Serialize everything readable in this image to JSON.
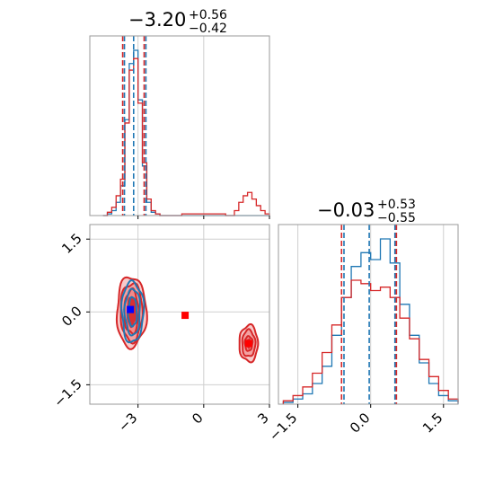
{
  "chart_data": {
    "type": "corner",
    "colors": {
      "blue": "#1f77b4",
      "red": "#d62728",
      "red_fill": "#f08a8a",
      "marker_blue": "#0000ff",
      "marker_red": "#ff0000"
    },
    "grid": true,
    "panels": [
      {
        "id": "marginal-param1",
        "type": "histogram",
        "title": {
          "median": "−3.20",
          "plus": "+0.56",
          "minus": "−0.42"
        },
        "xlim": [
          -5.2,
          3.0
        ],
        "vlines": {
          "blue": [
            -3.62,
            -3.2,
            -2.64
          ],
          "red": [
            -3.7,
            -2.72
          ]
        },
        "series": [
          {
            "name": "",
            "color": "#1f77b4",
            "bins": [
              -4.6,
              -4.4,
              -4.2,
              -4.0,
              -3.8,
              -3.6,
              -3.4,
              -3.2,
              -3.0,
              -2.8,
              -2.6,
              -2.4,
              -2.2,
              -2.0
            ],
            "counts": [
              0,
              1,
              3,
              8,
              18,
              58,
              92,
              100,
              70,
              30,
              8,
              2,
              1,
              0
            ]
          },
          {
            "name": "",
            "color": "#d62728",
            "bins": [
              -4.6,
              -4.4,
              -4.2,
              -4.0,
              -3.8,
              -3.6,
              -3.4,
              -3.2,
              -3.0,
              -2.8,
              -2.6,
              -2.4,
              -2.2,
              -2.0,
              -1.0,
              0.0,
              1.0,
              1.4,
              1.6,
              1.8,
              2.0,
              2.2,
              2.4,
              2.6,
              2.8,
              3.0
            ],
            "counts": [
              0,
              2,
              5,
              12,
              22,
              56,
              88,
              95,
              68,
              32,
              10,
              3,
              1,
              0,
              1,
              1,
              0,
              3,
              8,
              12,
              14,
              10,
              6,
              3,
              1,
              0
            ]
          }
        ]
      },
      {
        "id": "joint",
        "type": "contour",
        "xlim": [
          -5.2,
          3.0
        ],
        "ylim": [
          -1.9,
          1.8
        ],
        "xticks": [
          "−3",
          "0",
          "3"
        ],
        "xtick_values": [
          -3,
          0,
          3
        ],
        "yticks": [
          "−1.5",
          "0.0",
          "1.5"
        ],
        "ytick_values": [
          -1.5,
          0.0,
          1.5
        ],
        "markers": [
          {
            "x": -3.35,
            "y": 0.05,
            "color": "#0000ff"
          },
          {
            "x": -0.85,
            "y": -0.07,
            "color": "#ff0000"
          },
          {
            "x": 2.05,
            "y": -0.65,
            "color": "#ff0000"
          }
        ],
        "contours": [
          {
            "color": "#d62728",
            "cx": -3.3,
            "cy": 0.0,
            "levels": [
              [
                1.35,
                1.45
              ],
              [
                1.0,
                1.2
              ],
              [
                0.65,
                0.9
              ]
            ]
          },
          {
            "color": "#d62728",
            "cx": 2.05,
            "cy": -0.65,
            "levels": [
              [
                0.85,
                0.75
              ],
              [
                0.6,
                0.55
              ],
              [
                0.35,
                0.3
              ]
            ]
          },
          {
            "color": "#1f77b4",
            "cx": -3.25,
            "cy": 0.0,
            "levels": [
              [
                1.0,
                1.25
              ],
              [
                0.7,
                0.95
              ],
              [
                0.4,
                0.6
              ]
            ]
          }
        ]
      },
      {
        "id": "marginal-param2",
        "type": "histogram",
        "title": {
          "median": "−0.03",
          "plus": "+0.53",
          "minus": "−0.55"
        },
        "xlim": [
          -1.9,
          1.8
        ],
        "xticks": [
          "−1.5",
          "0.0",
          "1.5"
        ],
        "xtick_values": [
          -1.5,
          0.0,
          1.5
        ],
        "vlines": {
          "blue": [
            -0.55,
            -0.03,
            0.5
          ],
          "red": [
            -0.6,
            0.53
          ]
        },
        "series": [
          {
            "name": "",
            "color": "#1f77b4",
            "bins": [
              -1.8,
              -1.6,
              -1.4,
              -1.2,
              -1.0,
              -0.8,
              -0.6,
              -0.4,
              -0.2,
              0.0,
              0.2,
              0.4,
              0.6,
              0.8,
              1.0,
              1.2,
              1.4,
              1.6,
              1.8
            ],
            "counts": [
              1,
              3,
              6,
              12,
              22,
              40,
              62,
              80,
              88,
              84,
              96,
              82,
              58,
              40,
              24,
              12,
              5,
              2,
              0
            ]
          },
          {
            "name": "",
            "color": "#d62728",
            "bins": [
              -1.8,
              -1.6,
              -1.4,
              -1.2,
              -1.0,
              -0.8,
              -0.6,
              -0.4,
              -0.2,
              0.0,
              0.2,
              0.4,
              0.6,
              0.8,
              1.0,
              1.2,
              1.4,
              1.6,
              1.8
            ],
            "counts": [
              2,
              5,
              10,
              18,
              30,
              46,
              62,
              72,
              70,
              66,
              68,
              62,
              50,
              38,
              26,
              16,
              8,
              3,
              1
            ]
          }
        ]
      }
    ]
  }
}
